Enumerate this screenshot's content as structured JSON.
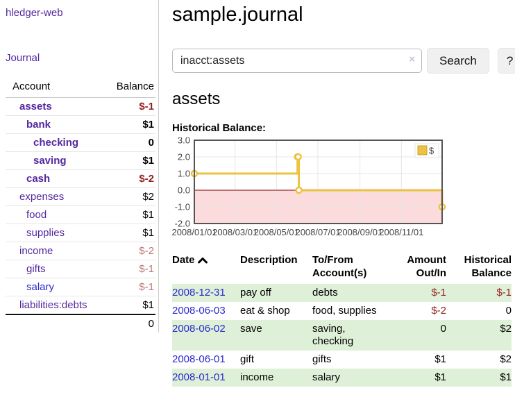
{
  "sidebar": {
    "brand": "hledger-web",
    "nav_journal": "Journal",
    "accounts_table": {
      "headers": [
        "Account",
        "Balance"
      ],
      "rows": [
        {
          "name": "assets",
          "depth": 1,
          "bold": true,
          "balance": "$-1",
          "balance_style": "neg-strong"
        },
        {
          "name": "bank",
          "depth": 2,
          "bold": true,
          "balance": "$1",
          "balance_style": "pos"
        },
        {
          "name": "checking",
          "depth": 3,
          "bold": true,
          "balance": "0",
          "balance_style": "pos"
        },
        {
          "name": "saving",
          "depth": 3,
          "bold": true,
          "balance": "$1",
          "balance_style": "pos"
        },
        {
          "name": "cash",
          "depth": 2,
          "bold": true,
          "balance": "$-2",
          "balance_style": "neg-strong"
        },
        {
          "name": "expenses",
          "depth": 1,
          "bold": false,
          "balance": "$2",
          "balance_style": "pos"
        },
        {
          "name": "food",
          "depth": 2,
          "bold": false,
          "balance": "$1",
          "balance_style": "pos"
        },
        {
          "name": "supplies",
          "depth": 2,
          "bold": false,
          "balance": "$1",
          "balance_style": "pos"
        },
        {
          "name": "income",
          "depth": 1,
          "bold": false,
          "balance": "$-2",
          "balance_style": "neg-soft"
        },
        {
          "name": "gifts",
          "depth": 2,
          "bold": false,
          "balance": "$-1",
          "balance_style": "neg-soft"
        },
        {
          "name": "salary",
          "depth": 2,
          "bold": false,
          "balance": "$-1",
          "balance_style": "neg-soft",
          "link_color": "blue"
        },
        {
          "name": "liabilities:debts",
          "depth": 1,
          "bold": false,
          "balance": "$1",
          "balance_style": "pos"
        }
      ],
      "total": "0"
    }
  },
  "main": {
    "title": "sample.journal",
    "search": {
      "value": "inacct:assets",
      "clear_icon": "×",
      "button": "Search",
      "help_button": "?"
    },
    "account_heading": "assets",
    "chart_label": "Historical Balance:"
  },
  "chart_data": {
    "type": "line",
    "title": "Historical Balance:",
    "series": [
      {
        "name": "$",
        "color": "#edc240",
        "step": true,
        "points": [
          [
            "2008-01-01",
            1
          ],
          [
            "2008-06-01",
            2
          ],
          [
            "2008-06-02",
            2
          ],
          [
            "2008-06-03",
            0
          ],
          [
            "2008-12-31",
            -1
          ]
        ]
      }
    ],
    "x_range": [
      "2008-01-01",
      "2008-12-31"
    ],
    "x_ticks": [
      "2008/01/01",
      "2008/03/01",
      "2008/05/01",
      "2008/07/01",
      "2008/09/01",
      "2008/11/01"
    ],
    "y_ticks": [
      3.0,
      2.0,
      1.0,
      0.0,
      -1.0,
      -2.0
    ],
    "ylim": [
      -2,
      3
    ],
    "grid": true,
    "legend_position": "top-right",
    "negative_region_color": "#fbdbdb",
    "zero_line_color": "#8b0000",
    "border_color": "#545454",
    "grid_color": "#e6e6e6",
    "tick_label_color": "#444444"
  },
  "register_table": {
    "headers": [
      {
        "lines": [
          "Date"
        ],
        "sorted": "asc",
        "align": "left"
      },
      {
        "lines": [
          "Description"
        ],
        "align": "left"
      },
      {
        "lines": [
          "To/From",
          "Account(s)"
        ],
        "align": "left"
      },
      {
        "lines": [
          "Amount",
          "Out/In"
        ],
        "align": "right"
      },
      {
        "lines": [
          "Historical",
          "Balance"
        ],
        "align": "right"
      }
    ],
    "rows": [
      {
        "date": "2008-12-31",
        "description": "pay off",
        "accounts": "debts",
        "amount": "$-1",
        "amount_neg": true,
        "balance": "$-1",
        "balance_neg": true
      },
      {
        "date": "2008-06-03",
        "description": "eat & shop",
        "accounts": "food, supplies",
        "amount": "$-2",
        "amount_neg": true,
        "balance": "0",
        "balance_neg": false
      },
      {
        "date": "2008-06-02",
        "description": "save",
        "accounts": "saving, checking",
        "amount": "0",
        "amount_neg": false,
        "balance": "$2",
        "balance_neg": false
      },
      {
        "date": "2008-06-01",
        "description": "gift",
        "accounts": "gifts",
        "amount": "$1",
        "amount_neg": false,
        "balance": "$2",
        "balance_neg": false
      },
      {
        "date": "2008-01-01",
        "description": "income",
        "accounts": "salary",
        "amount": "$1",
        "amount_neg": false,
        "balance": "$1",
        "balance_neg": false
      }
    ]
  },
  "colors": {
    "link_purple": "#53279e",
    "link_blue": "#2a2ad0",
    "negative_strong": "#941f1f",
    "negative_soft": "#bd7575",
    "row_stripe_green": "#dff0d8",
    "series_gold": "#edc240"
  }
}
